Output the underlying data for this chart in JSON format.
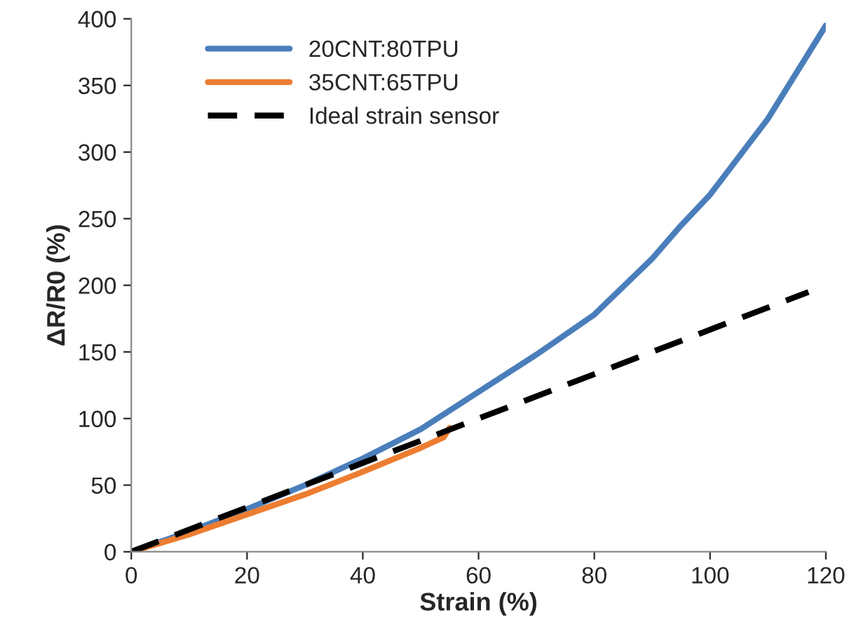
{
  "chart_data": {
    "type": "line",
    "xlabel": "Strain (%)",
    "ylabel": "ΔR/R0 (%)",
    "xlim": [
      0,
      120
    ],
    "xticks": [
      0,
      20,
      40,
      60,
      80,
      100,
      120
    ],
    "ylim": [
      0,
      400
    ],
    "yticks": [
      0,
      50,
      100,
      150,
      200,
      250,
      300,
      350,
      400
    ],
    "grid": false,
    "legend": "top left",
    "series": [
      {
        "name": "20CNT:80TPU",
        "color": "#4a7ebb",
        "line_style": "solid",
        "x": [
          0,
          10,
          20,
          30,
          40,
          50,
          60,
          70,
          80,
          90,
          95,
          100,
          110,
          120
        ],
        "values": [
          0,
          15,
          32,
          50,
          70,
          92,
          120,
          148,
          178,
          220,
          245,
          268,
          325,
          395
        ]
      },
      {
        "name": "35CNT:65TPU",
        "color": "#ed7d31",
        "line_style": "solid",
        "x": [
          0,
          10,
          20,
          30,
          40,
          50,
          54,
          55
        ],
        "values": [
          0,
          13,
          28,
          43,
          60,
          78,
          86,
          93
        ]
      },
      {
        "name": "Ideal strain sensor",
        "color": "#000000",
        "line_style": "dashed",
        "x": [
          0,
          117
        ],
        "values": [
          0,
          195
        ]
      }
    ]
  }
}
